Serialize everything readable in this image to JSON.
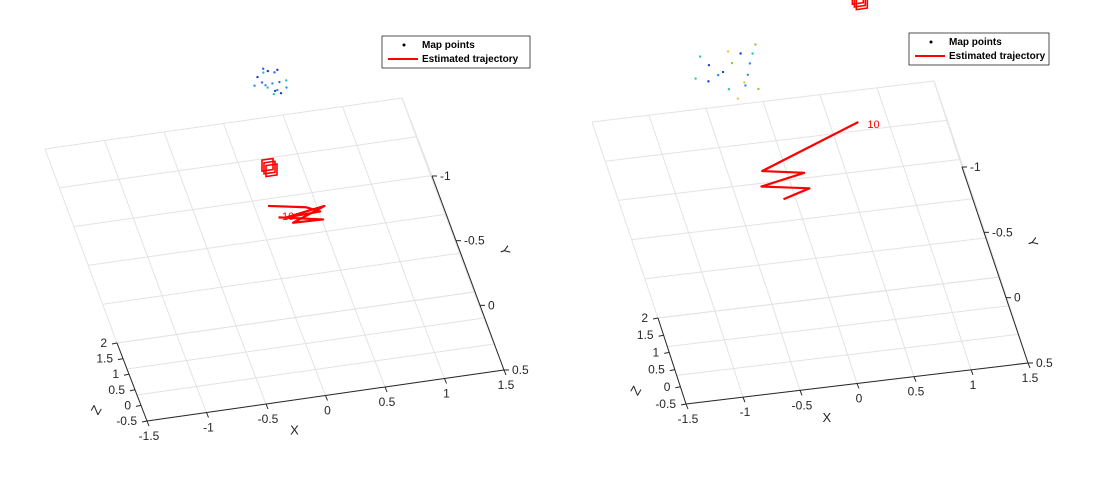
{
  "chart_data": [
    {
      "type": "scatter",
      "title": "",
      "xlabel": "X",
      "ylabel": "Y",
      "zlabel": "Z",
      "x_ticks": [
        "-1.5",
        "-1",
        "-0.5",
        "0",
        "0.5",
        "1",
        "1.5"
      ],
      "y_ticks": [
        "-1",
        "-0.5",
        "0",
        "0.5"
      ],
      "z_ticks": [
        "-0.5",
        "0",
        "0.5",
        "1",
        "1.5",
        "2"
      ],
      "xlim": [
        -1.5,
        1.5
      ],
      "ylim": [
        -1,
        0.5
      ],
      "zlim": [
        -0.5,
        2
      ],
      "grid": true,
      "legend_position": "top-right",
      "colors": {
        "trajectory": "#ff0000",
        "map_points": [
          "#1f3bd6",
          "#2c8fd8",
          "#2ec4a6",
          "#3d5bff"
        ]
      },
      "series": [
        {
          "name": "Map points",
          "kind": "points",
          "points": [
            {
              "x": 0.2,
              "y": -0.9,
              "z": 1.55
            },
            {
              "x": 0.3,
              "y": -0.85,
              "z": 1.5
            },
            {
              "x": 0.25,
              "y": -0.8,
              "z": 1.6
            },
            {
              "x": 0.35,
              "y": -0.9,
              "z": 1.62
            },
            {
              "x": 0.3,
              "y": -0.95,
              "z": 1.48
            },
            {
              "x": 0.4,
              "y": -0.8,
              "z": 1.52
            },
            {
              "x": 0.28,
              "y": -0.75,
              "z": 1.58
            },
            {
              "x": 0.22,
              "y": -0.88,
              "z": 1.45
            },
            {
              "x": 0.38,
              "y": -0.92,
              "z": 1.6
            },
            {
              "x": 0.32,
              "y": -0.82,
              "z": 1.4
            },
            {
              "x": 0.26,
              "y": -0.9,
              "z": 1.66
            },
            {
              "x": 0.36,
              "y": -0.86,
              "z": 1.47
            },
            {
              "x": 0.3,
              "y": -0.78,
              "z": 1.55
            },
            {
              "x": 0.15,
              "y": -0.9,
              "z": 1.3
            },
            {
              "x": 0.42,
              "y": -0.84,
              "z": 1.57
            },
            {
              "x": 0.27,
              "y": -0.96,
              "z": 1.53
            },
            {
              "x": 0.34,
              "y": -0.74,
              "z": 1.62
            },
            {
              "x": 0.24,
              "y": -0.8,
              "z": 1.68
            }
          ]
        },
        {
          "name": "Estimated trajectory",
          "kind": "line",
          "points": [
            {
              "x": -0.1,
              "y": -0.1,
              "z": 0.9
            },
            {
              "x": 0.2,
              "y": -0.05,
              "z": 0.9
            },
            {
              "x": 0.3,
              "y": 0.0,
              "z": 0.92
            },
            {
              "x": 0.0,
              "y": 0.0,
              "z": 0.88
            },
            {
              "x": 0.35,
              "y": -0.05,
              "z": 0.86
            },
            {
              "x": 0.05,
              "y": 0.05,
              "z": 0.9
            },
            {
              "x": 0.3,
              "y": 0.05,
              "z": 0.87
            },
            {
              "x": -0.05,
              "y": 0.0,
              "z": 0.92
            }
          ]
        }
      ],
      "camera_labels": [
        "10"
      ]
    },
    {
      "type": "scatter",
      "title": "",
      "xlabel": "X",
      "ylabel": "Y",
      "zlabel": "Z",
      "x_ticks": [
        "-1.5",
        "-1",
        "-0.5",
        "0",
        "0.5",
        "1",
        "1.5"
      ],
      "y_ticks": [
        "-1",
        "-0.5",
        "0",
        "0.5"
      ],
      "z_ticks": [
        "-0.5",
        "0",
        "0.5",
        "1",
        "1.5",
        "2"
      ],
      "xlim": [
        -1.5,
        1.5
      ],
      "ylim": [
        -1,
        0.5
      ],
      "zlim": [
        -0.5,
        2
      ],
      "grid": true,
      "legend_position": "top-right",
      "colors": {
        "trajectory": "#ff0000",
        "map_points": [
          "#1f3bd6",
          "#2c8fd8",
          "#2ec4a6",
          "#7fd23a",
          "#d6d02a"
        ]
      },
      "series": [
        {
          "name": "Map points",
          "kind": "points",
          "points": [
            {
              "x": -0.6,
              "y": -0.8,
              "z": 1.55
            },
            {
              "x": -0.5,
              "y": -0.85,
              "z": 1.5
            },
            {
              "x": -0.45,
              "y": -0.75,
              "z": 1.45
            },
            {
              "x": -0.35,
              "y": -0.9,
              "z": 1.6
            },
            {
              "x": -0.3,
              "y": -0.8,
              "z": 1.4
            },
            {
              "x": -0.25,
              "y": -0.95,
              "z": 1.65
            },
            {
              "x": -0.2,
              "y": -0.85,
              "z": 1.72
            },
            {
              "x": -0.15,
              "y": -0.9,
              "z": 1.8
            },
            {
              "x": -0.1,
              "y": -0.95,
              "z": 1.85
            },
            {
              "x": -0.4,
              "y": -0.7,
              "z": 1.35
            },
            {
              "x": -0.55,
              "y": -0.9,
              "z": 1.62
            },
            {
              "x": -0.3,
              "y": -0.75,
              "z": 1.5
            },
            {
              "x": -0.7,
              "y": -0.85,
              "z": 1.48
            },
            {
              "x": -0.2,
              "y": -0.7,
              "z": 1.55
            },
            {
              "x": -0.35,
              "y": -0.95,
              "z": 1.75
            },
            {
              "x": -0.45,
              "y": -0.9,
              "z": 1.38
            },
            {
              "x": -0.25,
              "y": -0.8,
              "z": 1.6
            },
            {
              "x": -0.6,
              "y": -0.95,
              "z": 1.7
            }
          ]
        },
        {
          "name": "Estimated trajectory",
          "kind": "line",
          "points": [
            {
              "x": 0.55,
              "y": -0.5,
              "z": 1.05
            },
            {
              "x": -0.4,
              "y": -0.25,
              "z": 0.95
            },
            {
              "x": -0.05,
              "y": -0.2,
              "z": 0.95
            },
            {
              "x": -0.45,
              "y": -0.15,
              "z": 0.9
            },
            {
              "x": -0.05,
              "y": -0.1,
              "z": 0.88
            },
            {
              "x": -0.3,
              "y": -0.05,
              "z": 0.85
            }
          ]
        }
      ],
      "camera_labels": [
        "10"
      ]
    }
  ]
}
